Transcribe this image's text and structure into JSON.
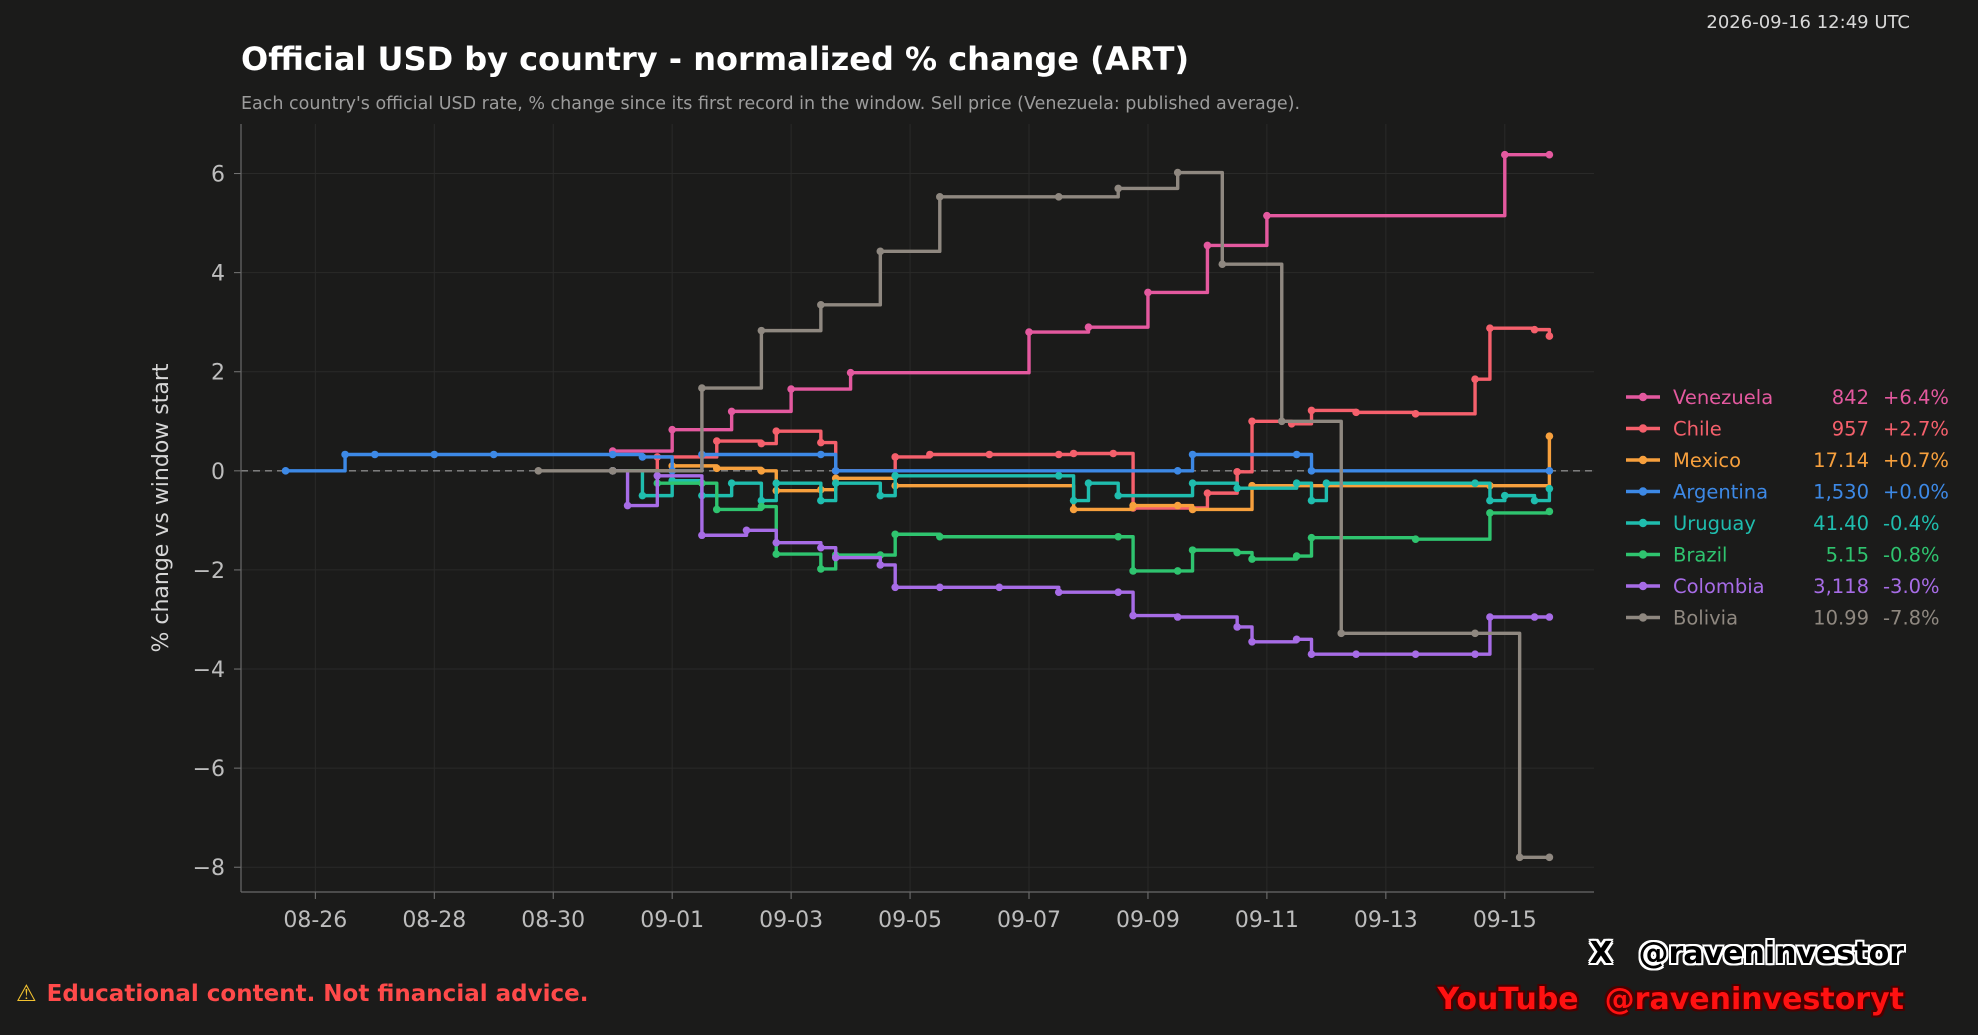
{
  "timestamp": "2026-09-16 12:49 UTC",
  "disclaimer": {
    "icon": "warning-icon",
    "text": "Educational content. Not financial advice."
  },
  "social": {
    "x_label": "X",
    "x_handle": "@raveninvestor",
    "yt_label": "YouTube",
    "yt_handle": "@raveninvestoryt"
  },
  "chart_data": {
    "type": "line",
    "step": true,
    "title": "Official USD by country - normalized % change (ART)",
    "subtitle": "Each country's official USD rate, % change since its first record in the window. Sell price (Venezuela: published average).",
    "xlabel": "",
    "ylabel": "% change vs window start",
    "x_ticks": [
      "08-26",
      "08-28",
      "08-30",
      "09-01",
      "09-03",
      "09-05",
      "09-07",
      "09-09",
      "09-11",
      "09-13",
      "09-15"
    ],
    "xlim": [
      "2025-08-24T18:00",
      "2025-09-16T12:00"
    ],
    "y_ticks": [
      6,
      4,
      2,
      0,
      -2,
      -4,
      -6,
      -8
    ],
    "ylim": [
      -8.5,
      7
    ],
    "reference_line": 0,
    "grid": true,
    "legend_position": "right",
    "series": [
      {
        "name": "Venezuela",
        "last": "842",
        "change": "+6.4%",
        "color": "#e4599f",
        "points": [
          [
            "2025-08-31T00:00",
            0.4
          ],
          [
            "2025-09-01T00:00",
            0.83
          ],
          [
            "2025-09-02T00:00",
            1.2
          ],
          [
            "2025-09-03T00:00",
            1.65
          ],
          [
            "2025-09-04T00:00",
            1.98
          ],
          [
            "2025-09-07T00:00",
            2.8
          ],
          [
            "2025-09-08T00:00",
            2.9
          ],
          [
            "2025-09-09T00:00",
            3.6
          ],
          [
            "2025-09-10T00:00",
            4.55
          ],
          [
            "2025-09-11T00:00",
            5.15
          ],
          [
            "2025-09-15T00:00",
            6.38
          ],
          [
            "2025-09-15T18:00",
            6.38
          ]
        ]
      },
      {
        "name": "Chile",
        "last": "957",
        "change": "+2.7%",
        "color": "#f5606c",
        "points": [
          [
            "2025-08-31T00:00",
            0.0
          ],
          [
            "2025-08-31T18:00",
            0.28
          ],
          [
            "2025-09-01T18:00",
            0.6
          ],
          [
            "2025-09-02T12:00",
            0.55
          ],
          [
            "2025-09-02T18:00",
            0.8
          ],
          [
            "2025-09-03T12:00",
            0.57
          ],
          [
            "2025-09-03T18:00",
            0.0
          ],
          [
            "2025-09-04T18:00",
            0.28
          ],
          [
            "2025-09-05T08:00",
            0.33
          ],
          [
            "2025-09-06T08:00",
            0.33
          ],
          [
            "2025-09-07T12:00",
            0.33
          ],
          [
            "2025-09-07T18:00",
            0.35
          ],
          [
            "2025-09-08T10:00",
            0.35
          ],
          [
            "2025-09-08T18:00",
            -0.75
          ],
          [
            "2025-09-10T00:00",
            -0.45
          ],
          [
            "2025-09-10T12:00",
            -0.02
          ],
          [
            "2025-09-10T18:00",
            1.0
          ],
          [
            "2025-09-11T10:00",
            0.95
          ],
          [
            "2025-09-11T18:00",
            1.22
          ],
          [
            "2025-09-12T12:00",
            1.18
          ],
          [
            "2025-09-13T12:00",
            1.15
          ],
          [
            "2025-09-14T12:00",
            1.85
          ],
          [
            "2025-09-14T18:00",
            2.88
          ],
          [
            "2025-09-15T12:00",
            2.85
          ],
          [
            "2025-09-15T18:00",
            2.72
          ]
        ]
      },
      {
        "name": "Mexico",
        "last": "17.14",
        "change": "+0.7%",
        "color": "#f7a03d",
        "points": [
          [
            "2025-08-31T00:00",
            0.0
          ],
          [
            "2025-09-01T00:00",
            0.1
          ],
          [
            "2025-09-01T18:00",
            0.05
          ],
          [
            "2025-09-02T12:00",
            0.0
          ],
          [
            "2025-09-02T18:00",
            -0.4
          ],
          [
            "2025-09-03T12:00",
            -0.38
          ],
          [
            "2025-09-03T18:00",
            -0.15
          ],
          [
            "2025-09-04T18:00",
            -0.3
          ],
          [
            "2025-09-07T18:00",
            -0.78
          ],
          [
            "2025-09-08T18:00",
            -0.7
          ],
          [
            "2025-09-09T12:00",
            -0.7
          ],
          [
            "2025-09-09T18:00",
            -0.78
          ],
          [
            "2025-09-10T18:00",
            -0.3
          ],
          [
            "2025-09-14T18:00",
            -0.3
          ],
          [
            "2025-09-15T18:00",
            0.7
          ]
        ]
      },
      {
        "name": "Argentina",
        "last": "1,530",
        "change": "+0.0%",
        "color": "#3d89e6",
        "points": [
          [
            "2025-08-25T12:00",
            0.0
          ],
          [
            "2025-08-26T12:00",
            0.33
          ],
          [
            "2025-08-27T00:00",
            0.33
          ],
          [
            "2025-08-28T00:00",
            0.33
          ],
          [
            "2025-08-29T00:00",
            0.33
          ],
          [
            "2025-08-31T00:00",
            0.33
          ],
          [
            "2025-08-31T12:00",
            0.28
          ],
          [
            "2025-09-01T00:00",
            0.0
          ],
          [
            "2025-09-01T12:00",
            0.33
          ],
          [
            "2025-09-03T12:00",
            0.33
          ],
          [
            "2025-09-03T18:00",
            0.0
          ],
          [
            "2025-09-09T12:00",
            0.0
          ],
          [
            "2025-09-09T18:00",
            0.33
          ],
          [
            "2025-09-11T12:00",
            0.33
          ],
          [
            "2025-09-11T18:00",
            0.0
          ],
          [
            "2025-09-15T18:00",
            0.0
          ]
        ]
      },
      {
        "name": "Uruguay",
        "last": "41.40",
        "change": "-0.4%",
        "color": "#1fbdae",
        "points": [
          [
            "2025-08-31T00:00",
            0.0
          ],
          [
            "2025-08-31T12:00",
            -0.5
          ],
          [
            "2025-09-01T00:00",
            -0.2
          ],
          [
            "2025-09-01T12:00",
            -0.5
          ],
          [
            "2025-09-02T00:00",
            -0.25
          ],
          [
            "2025-09-02T12:00",
            -0.6
          ],
          [
            "2025-09-02T18:00",
            -0.25
          ],
          [
            "2025-09-03T12:00",
            -0.6
          ],
          [
            "2025-09-03T18:00",
            -0.25
          ],
          [
            "2025-09-04T12:00",
            -0.5
          ],
          [
            "2025-09-04T18:00",
            -0.1
          ],
          [
            "2025-09-07T12:00",
            -0.1
          ],
          [
            "2025-09-07T18:00",
            -0.6
          ],
          [
            "2025-09-08T00:00",
            -0.25
          ],
          [
            "2025-09-08T12:00",
            -0.5
          ],
          [
            "2025-09-09T18:00",
            -0.25
          ],
          [
            "2025-09-10T12:00",
            -0.35
          ],
          [
            "2025-09-11T12:00",
            -0.25
          ],
          [
            "2025-09-11T18:00",
            -0.6
          ],
          [
            "2025-09-12T00:00",
            -0.25
          ],
          [
            "2025-09-14T12:00",
            -0.25
          ],
          [
            "2025-09-14T18:00",
            -0.6
          ],
          [
            "2025-09-15T00:00",
            -0.5
          ],
          [
            "2025-09-15T12:00",
            -0.6
          ],
          [
            "2025-09-15T18:00",
            -0.36
          ]
        ]
      },
      {
        "name": "Brazil",
        "last": "5.15",
        "change": "-0.8%",
        "color": "#2fc46f",
        "points": [
          [
            "2025-08-31T00:00",
            0.0
          ],
          [
            "2025-08-31T18:00",
            -0.25
          ],
          [
            "2025-09-01T12:00",
            -0.25
          ],
          [
            "2025-09-01T18:00",
            -0.78
          ],
          [
            "2025-09-02T12:00",
            -0.72
          ],
          [
            "2025-09-02T18:00",
            -1.68
          ],
          [
            "2025-09-03T12:00",
            -1.98
          ],
          [
            "2025-09-03T18:00",
            -1.7
          ],
          [
            "2025-09-04T12:00",
            -1.7
          ],
          [
            "2025-09-04T18:00",
            -1.28
          ],
          [
            "2025-09-05T12:00",
            -1.33
          ],
          [
            "2025-09-08T12:00",
            -1.33
          ],
          [
            "2025-09-08T18:00",
            -2.02
          ],
          [
            "2025-09-09T12:00",
            -2.02
          ],
          [
            "2025-09-09T18:00",
            -1.6
          ],
          [
            "2025-09-10T12:00",
            -1.65
          ],
          [
            "2025-09-10T18:00",
            -1.78
          ],
          [
            "2025-09-11T12:00",
            -1.72
          ],
          [
            "2025-09-11T18:00",
            -1.35
          ],
          [
            "2025-09-13T12:00",
            -1.38
          ],
          [
            "2025-09-14T18:00",
            -0.85
          ],
          [
            "2025-09-15T18:00",
            -0.82
          ]
        ]
      },
      {
        "name": "Colombia",
        "last": "3,118",
        "change": "-3.0%",
        "color": "#a76ce6",
        "points": [
          [
            "2025-08-31T00:00",
            0.0
          ],
          [
            "2025-08-31T06:00",
            -0.7
          ],
          [
            "2025-08-31T18:00",
            -0.1
          ],
          [
            "2025-09-01T12:00",
            -1.3
          ],
          [
            "2025-09-02T06:00",
            -1.2
          ],
          [
            "2025-09-02T18:00",
            -1.45
          ],
          [
            "2025-09-03T12:00",
            -1.55
          ],
          [
            "2025-09-03T18:00",
            -1.75
          ],
          [
            "2025-09-04T12:00",
            -1.9
          ],
          [
            "2025-09-04T18:00",
            -2.35
          ],
          [
            "2025-09-05T12:00",
            -2.35
          ],
          [
            "2025-09-06T12:00",
            -2.35
          ],
          [
            "2025-09-07T12:00",
            -2.45
          ],
          [
            "2025-09-08T12:00",
            -2.45
          ],
          [
            "2025-09-08T18:00",
            -2.92
          ],
          [
            "2025-09-09T12:00",
            -2.95
          ],
          [
            "2025-09-10T12:00",
            -3.15
          ],
          [
            "2025-09-10T18:00",
            -3.45
          ],
          [
            "2025-09-11T12:00",
            -3.4
          ],
          [
            "2025-09-11T18:00",
            -3.7
          ],
          [
            "2025-09-12T12:00",
            -3.7
          ],
          [
            "2025-09-13T12:00",
            -3.7
          ],
          [
            "2025-09-14T12:00",
            -3.7
          ],
          [
            "2025-09-14T18:00",
            -2.95
          ],
          [
            "2025-09-15T12:00",
            -2.95
          ],
          [
            "2025-09-15T18:00",
            -2.95
          ]
        ]
      },
      {
        "name": "Bolivia",
        "last": "10.99",
        "change": "-7.8%",
        "color": "#8f8880",
        "points": [
          [
            "2025-08-29T18:00",
            0.0
          ],
          [
            "2025-08-31T00:00",
            0.0
          ],
          [
            "2025-09-01T12:00",
            1.67
          ],
          [
            "2025-09-02T12:00",
            2.83
          ],
          [
            "2025-09-03T12:00",
            3.35
          ],
          [
            "2025-09-04T12:00",
            4.43
          ],
          [
            "2025-09-05T12:00",
            5.53
          ],
          [
            "2025-09-07T12:00",
            5.53
          ],
          [
            "2025-09-08T12:00",
            5.7
          ],
          [
            "2025-09-09T12:00",
            6.02
          ],
          [
            "2025-09-10T06:00",
            4.17
          ],
          [
            "2025-09-11T06:00",
            1.0
          ],
          [
            "2025-09-12T06:00",
            -3.28
          ],
          [
            "2025-09-14T12:00",
            -3.28
          ],
          [
            "2025-09-15T06:00",
            -7.8
          ],
          [
            "2025-09-15T18:00",
            -7.8
          ]
        ]
      }
    ]
  }
}
